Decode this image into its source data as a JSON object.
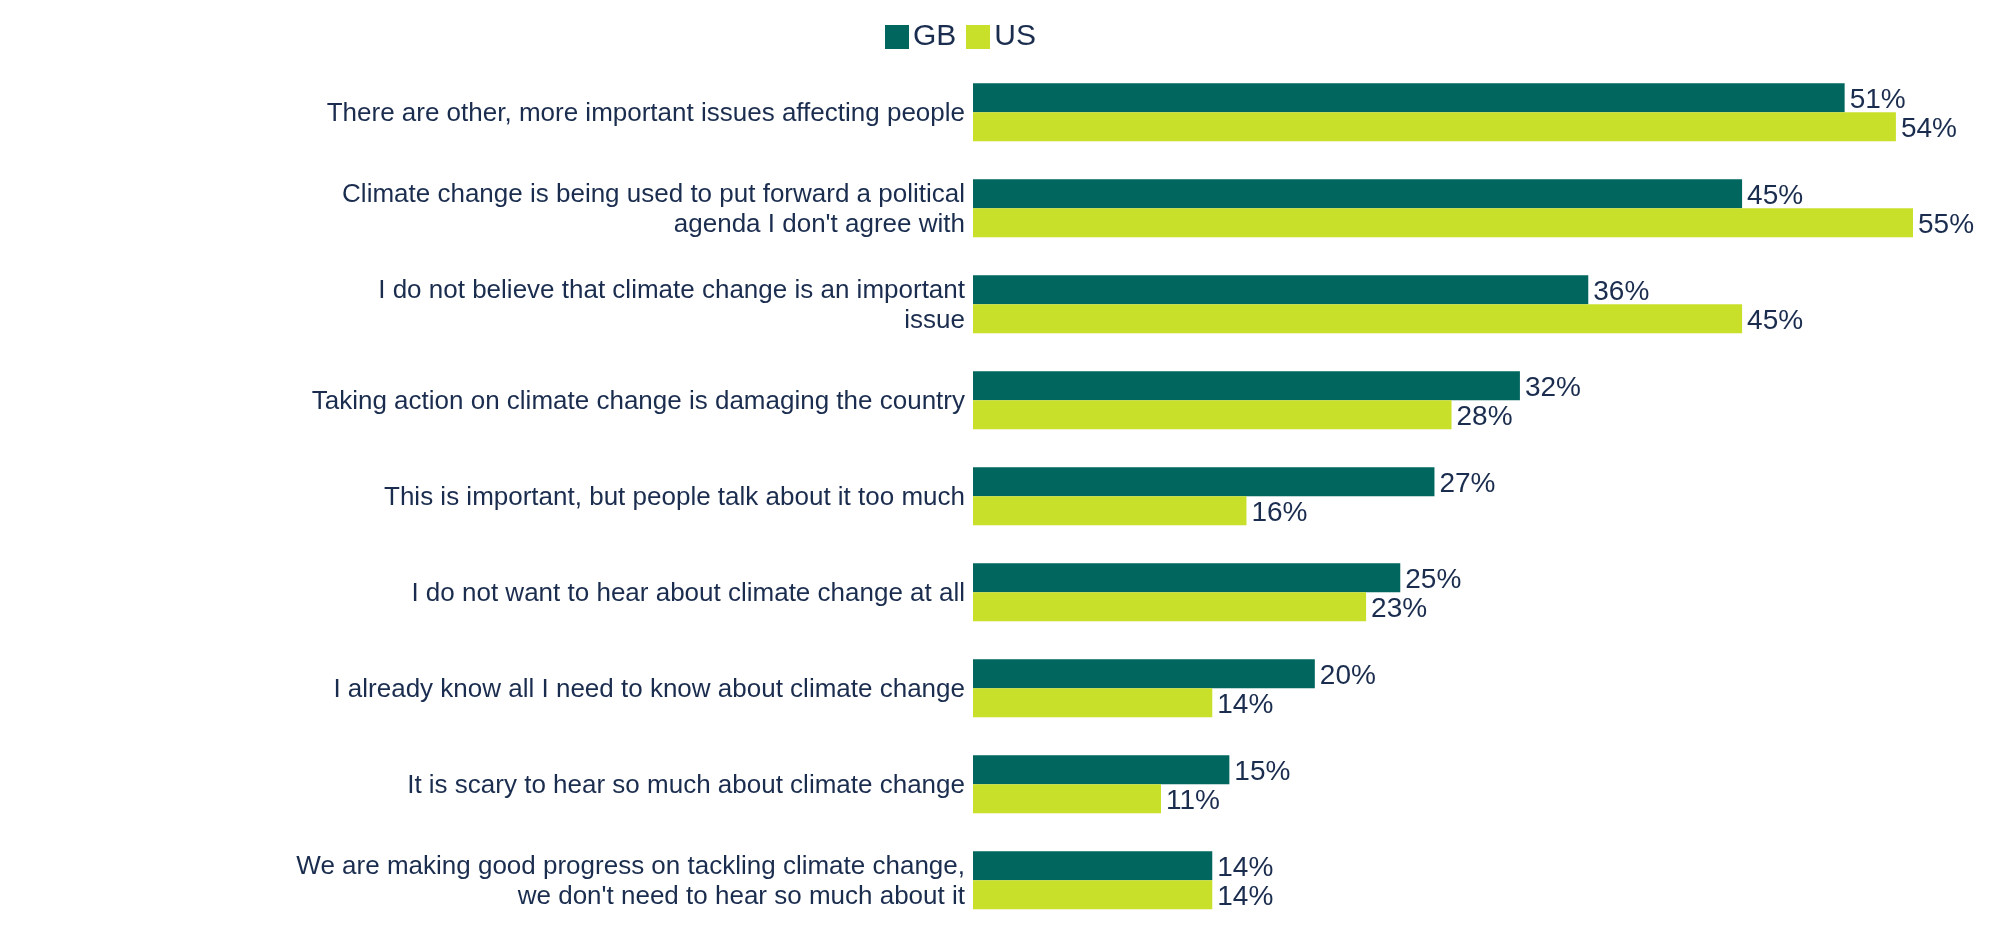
{
  "chart_data": {
    "type": "bar",
    "orientation": "horizontal",
    "legend": "top",
    "grid": false,
    "categories": [
      "There are other, more important issues affecting people",
      "Climate change is being used to put forward a political agenda I don't agree with",
      "I do not believe that climate change is an important issue",
      "Taking action on climate change is damaging the country",
      "This is important, but people talk about it too much",
      "I do not want to hear about climate change at all",
      "I already know all I need to know about climate change",
      "It is scary to hear so much about climate change",
      "We are making good progress on tackling climate change, we don't need to hear so much about it"
    ],
    "series": [
      {
        "name": "GB",
        "color": "#00665e",
        "values": [
          51,
          45,
          36,
          32,
          27,
          25,
          20,
          15,
          14
        ],
        "value_labels": [
          "51%",
          "45%",
          "36%",
          "32%",
          "27%",
          "25%",
          "20%",
          "15%",
          "14%"
        ]
      },
      {
        "name": "US",
        "color": "#c9e02a",
        "values": [
          54,
          55,
          45,
          28,
          16,
          23,
          14,
          11,
          14
        ],
        "value_labels": [
          "54%",
          "55%",
          "45%",
          "28%",
          "16%",
          "23%",
          "14%",
          "11%",
          "14%"
        ]
      }
    ]
  }
}
